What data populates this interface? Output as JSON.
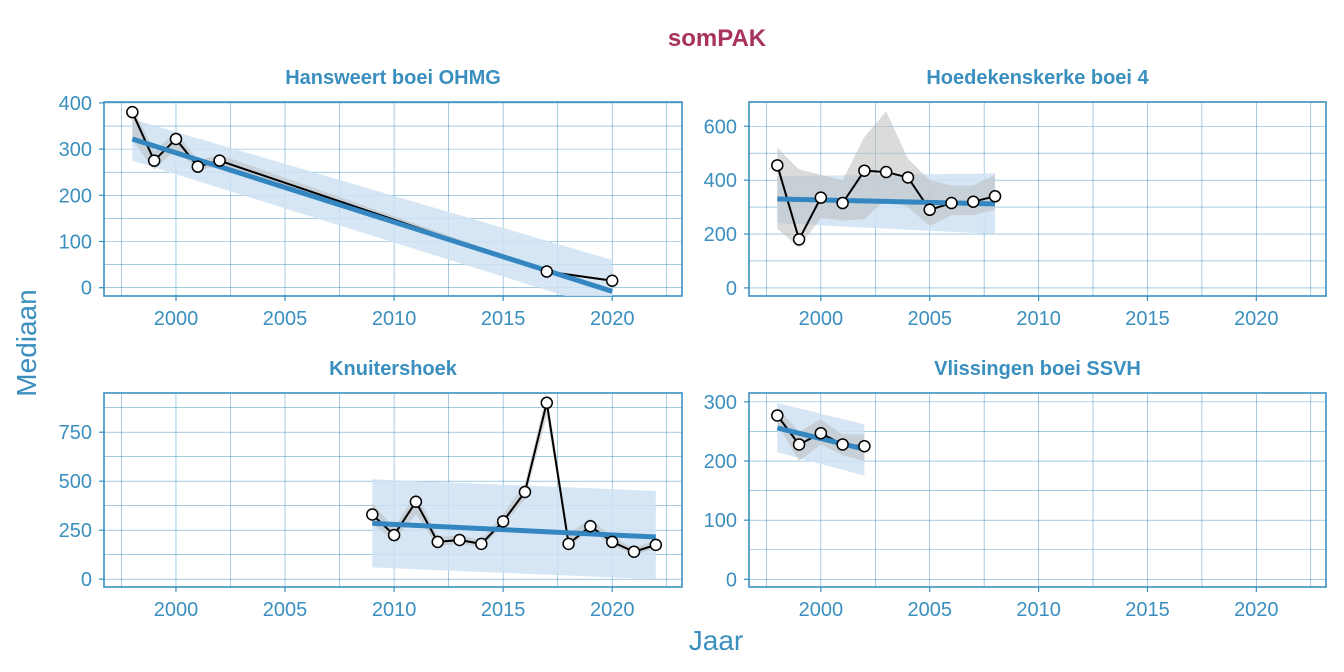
{
  "title": "somPAK",
  "xlabel": "Jaar",
  "ylabel": "Mediaan",
  "colors": {
    "title": "#A8325E",
    "axis": "#3A8FBF",
    "grid": "#3A8FBF",
    "trend": "#3386C0",
    "trend_band": "#CFE2F3",
    "loess_band": "#BEBEBE",
    "series": "#000000"
  },
  "chart_data": [
    {
      "type": "line",
      "title": "Hansweert boei OHMG",
      "xlim": [
        1996.7,
        2023.2
      ],
      "ylim": [
        -18,
        402
      ],
      "xticks": [
        2000,
        2005,
        2010,
        2015,
        2020
      ],
      "yticks": [
        0,
        100,
        200,
        300,
        400
      ],
      "x": [
        1998,
        1999,
        2000,
        2001,
        2002,
        2017,
        2020
      ],
      "values": [
        380,
        275,
        322,
        262,
        275,
        35,
        15
      ],
      "loess_band": {
        "lower": [
          320,
          255,
          300,
          255,
          262,
          33,
          13
        ],
        "upper": [
          392,
          295,
          338,
          275,
          288,
          38,
          18
        ]
      },
      "trend": {
        "x": [
          1998,
          2020
        ],
        "y": [
          322,
          -8
        ],
        "lower": [
          275,
          -50
        ],
        "upper": [
          365,
          60
        ]
      }
    },
    {
      "type": "line",
      "title": "Hoedekenskerke boei 4",
      "xlim": [
        1996.7,
        2023.2
      ],
      "ylim": [
        -30,
        690
      ],
      "xticks": [
        2000,
        2005,
        2010,
        2015,
        2020
      ],
      "yticks": [
        0,
        200,
        400,
        600
      ],
      "x": [
        1998,
        1999,
        2000,
        2001,
        2002,
        2003,
        2004,
        2005,
        2006,
        2007,
        2008
      ],
      "values": [
        455,
        180,
        335,
        315,
        435,
        430,
        410,
        290,
        315,
        320,
        340
      ],
      "loess_band": {
        "lower": [
          220,
          150,
          260,
          250,
          255,
          330,
          300,
          230,
          270,
          270,
          290
        ],
        "upper": [
          520,
          440,
          420,
          400,
          560,
          655,
          480,
          400,
          380,
          380,
          420
        ]
      },
      "trend": {
        "x": [
          1998,
          2008
        ],
        "y": [
          330,
          312
        ],
        "lower": [
          240,
          200
        ],
        "upper": [
          415,
          425
        ]
      }
    },
    {
      "type": "line",
      "title": "Knuitershoek",
      "xlim": [
        1996.7,
        2023.2
      ],
      "ylim": [
        -40,
        950
      ],
      "xticks": [
        2000,
        2005,
        2010,
        2015,
        2020
      ],
      "yticks": [
        0,
        250,
        500,
        750
      ],
      "x": [
        2009,
        2010,
        2011,
        2012,
        2013,
        2014,
        2015,
        2016,
        2017,
        2018,
        2019,
        2020,
        2021,
        2022
      ],
      "values": [
        330,
        225,
        395,
        190,
        200,
        180,
        295,
        445,
        900,
        180,
        270,
        190,
        140,
        175
      ],
      "loess_band": {
        "lower": [
          280,
          200,
          330,
          170,
          180,
          165,
          270,
          410,
          830,
          165,
          250,
          170,
          125,
          155
        ],
        "upper": [
          390,
          260,
          440,
          215,
          225,
          200,
          330,
          490,
          950,
          230,
          310,
          215,
          160,
          200
        ]
      },
      "trend": {
        "x": [
          2009,
          2022
        ],
        "y": [
          285,
          215
        ],
        "lower": [
          60,
          0
        ],
        "upper": [
          510,
          450
        ]
      }
    },
    {
      "type": "line",
      "title": "Vlissingen boei SSVH",
      "xlim": [
        1996.7,
        2023.2
      ],
      "ylim": [
        -13,
        315
      ],
      "xticks": [
        2000,
        2005,
        2010,
        2015,
        2020
      ],
      "yticks": [
        0,
        100,
        200,
        300
      ],
      "x": [
        1998,
        1999,
        2000,
        2001,
        2002
      ],
      "values": [
        277,
        228,
        247,
        228,
        225
      ],
      "loess_band": {
        "lower": [
          262,
          200,
          228,
          210,
          200
        ],
        "upper": [
          290,
          250,
          270,
          245,
          245
        ]
      },
      "trend": {
        "x": [
          1998,
          2002
        ],
        "y": [
          256,
          220
        ],
        "lower": [
          215,
          175
        ],
        "upper": [
          298,
          262
        ]
      }
    }
  ]
}
